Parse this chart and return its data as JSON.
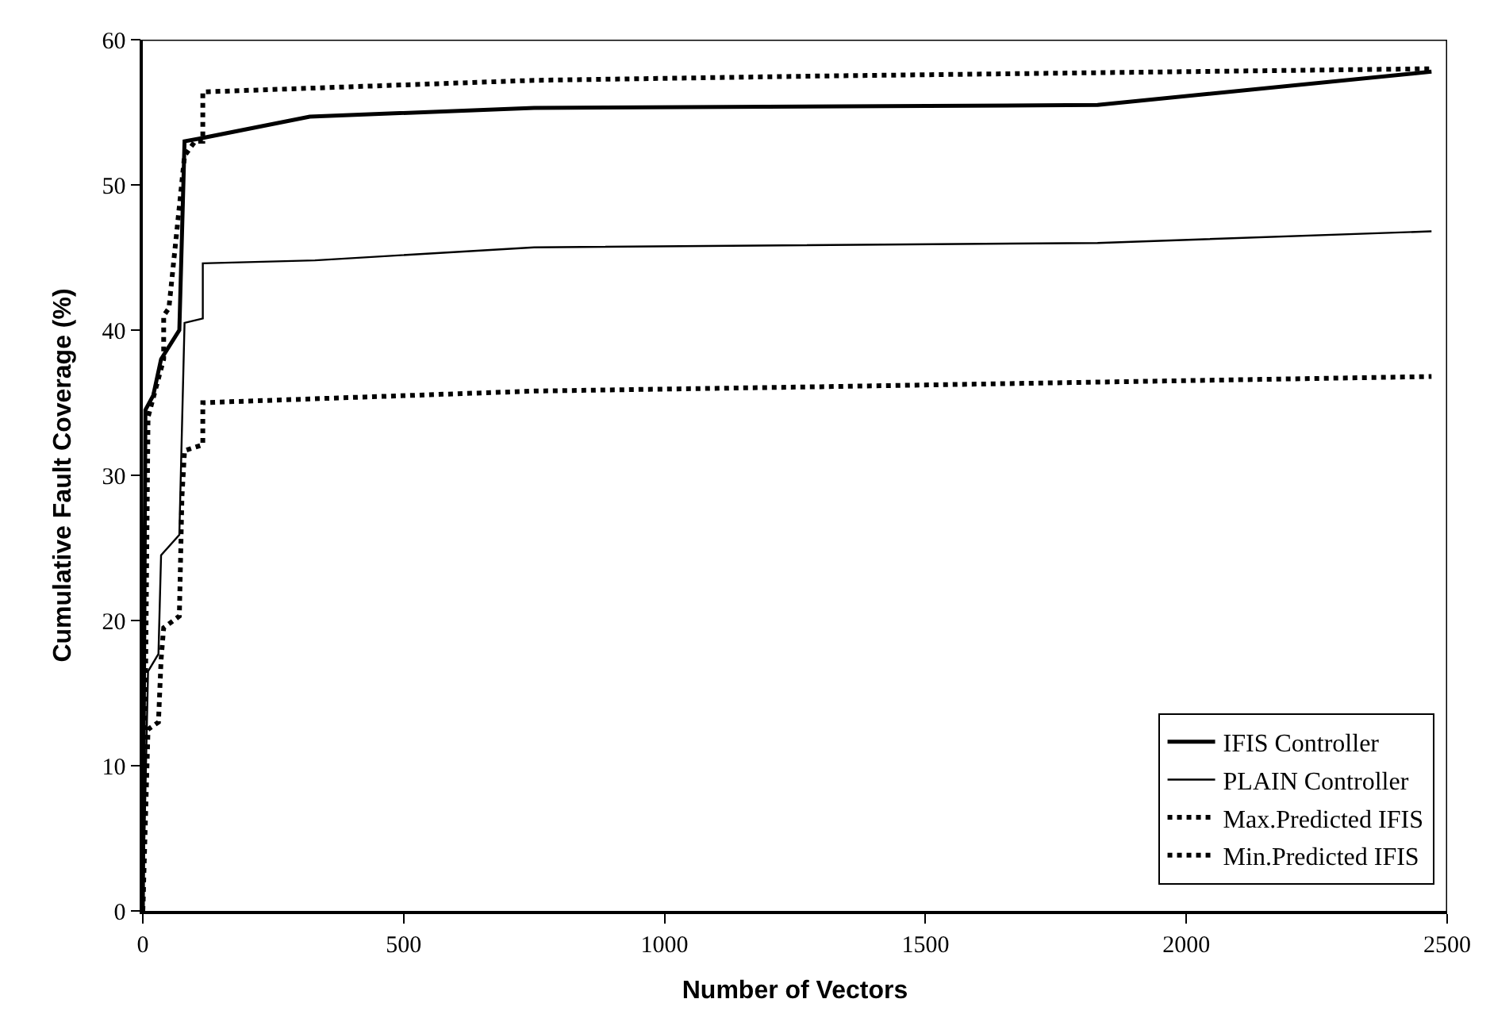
{
  "chart_data": {
    "type": "line",
    "xlabel": "Number of Vectors",
    "ylabel": "Cumulative Fault Coverage (%)",
    "xlim": [
      0,
      2500
    ],
    "xticks": [
      0,
      500,
      1000,
      1500,
      2000,
      2500
    ],
    "ylim": [
      0,
      60
    ],
    "yticks": [
      0,
      10,
      20,
      30,
      40,
      50,
      60
    ],
    "legend": "bottom right",
    "series": [
      {
        "name": "IFIS Controller",
        "color": "#000000",
        "line_style": "solid",
        "x": [
          0,
          5,
          20,
          35,
          70,
          80,
          110,
          320,
          750,
          1830,
          2470
        ],
        "values": [
          0,
          34.5,
          35.5,
          38,
          40,
          53,
          53.2,
          54.7,
          55.3,
          55.5,
          57.8
        ]
      },
      {
        "name": "PLAIN Controller",
        "color": "#000000",
        "line_style": "solid",
        "x": [
          0,
          10,
          30,
          35,
          70,
          80,
          115,
          115,
          330,
          750,
          1830,
          2470
        ],
        "values": [
          0,
          16.5,
          17.7,
          24.5,
          25.9,
          40.5,
          40.8,
          44.6,
          44.8,
          45.7,
          46,
          46.8
        ]
      },
      {
        "name": "Max.Predicted IFIS",
        "color": "#000000",
        "line_style": "dotted",
        "x": [
          0,
          5,
          10,
          40,
          40,
          50,
          80,
          100,
          115,
          115,
          750,
          1300,
          2470
        ],
        "values": [
          0,
          15,
          34,
          38,
          41,
          41.5,
          52,
          53,
          53,
          56.4,
          57.2,
          57.5,
          58
        ]
      },
      {
        "name": "Min.Predicted IFIS",
        "color": "#000000",
        "line_style": "dotted",
        "x": [
          0,
          10,
          30,
          35,
          40,
          70,
          75,
          80,
          115,
          115,
          750,
          1300,
          2470
        ],
        "values": [
          0,
          12.5,
          13,
          17.3,
          19.5,
          20.3,
          28.5,
          31.7,
          32.1,
          35,
          35.8,
          36.1,
          36.8
        ]
      }
    ]
  }
}
